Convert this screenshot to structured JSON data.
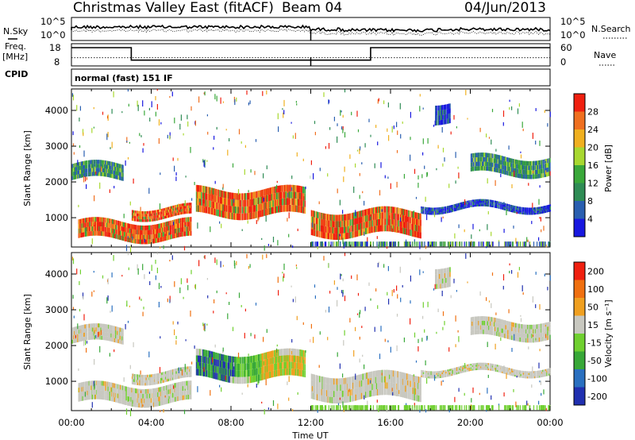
{
  "header": {
    "title": "Christmas Valley East (fitACF)",
    "beam": "Beam 04",
    "date": "04/Jun/2013"
  },
  "side_labels": {
    "nsky": "N.Sky",
    "nsearch": "N.Search",
    "freq_line1": "Freq.",
    "freq_line2": "[MHz]",
    "nave": "Nave",
    "cpid": "CPID",
    "cpid_value": "normal (fast) 151 IF"
  },
  "chart_data": [
    {
      "type": "line",
      "panel": "noise",
      "left_ticks": [
        "10^5",
        "10^0"
      ],
      "right_ticks": [
        "10^5",
        "10^0"
      ],
      "series": [
        {
          "name": "N.Sky",
          "style": "solid"
        },
        {
          "name": "N.Search",
          "style": "dotted"
        }
      ]
    },
    {
      "type": "line",
      "panel": "frequency",
      "left_ticks": [
        "18",
        "8"
      ],
      "right_ticks": [
        "60",
        "0"
      ],
      "ylim_left": [
        8,
        18
      ],
      "ylim_right": [
        0,
        60
      ],
      "freq_segments": [
        {
          "t0": 0,
          "t1": 3,
          "mhz": 16.2
        },
        {
          "t0": 3,
          "t1": 15,
          "mhz": 10.6
        },
        {
          "t0": 15,
          "t1": 24,
          "mhz": 16.2
        }
      ],
      "nave_level": 22
    },
    {
      "type": "heatmap",
      "panel": "power",
      "ylabel": "Slant Range [km]",
      "yticks": [
        "1000",
        "2000",
        "3000",
        "4000"
      ],
      "ylim": [
        180,
        4600
      ],
      "colorbar": {
        "label": "Power [dB]",
        "ticks": [
          "4",
          "8",
          "12",
          "16",
          "20",
          "24",
          "28"
        ],
        "colors": [
          "#1818e0",
          "#2a5fb0",
          "#2f8c55",
          "#3aa83a",
          "#a8d830",
          "#f0b020",
          "#f07020",
          "#f02010"
        ]
      },
      "features": [
        {
          "t0": 0,
          "t1": 2.6,
          "r0": 2050,
          "r1": 2500,
          "level": "mid"
        },
        {
          "t0": 0.3,
          "t1": 6.0,
          "r0": 380,
          "r1": 900,
          "level": "high"
        },
        {
          "t0": 3.0,
          "t1": 6.0,
          "r0": 1000,
          "r1": 1300,
          "level": "high"
        },
        {
          "t0": 6.2,
          "t1": 11.7,
          "r0": 1050,
          "r1": 1800,
          "level": "high"
        },
        {
          "t0": 12.0,
          "t1": 17.5,
          "r0": 500,
          "r1": 1200,
          "level": "high"
        },
        {
          "t0": 17.5,
          "t1": 24.0,
          "r0": 1200,
          "r1": 1400,
          "level": "low"
        },
        {
          "t0": 20.0,
          "t1": 24.0,
          "r0": 2200,
          "r1": 2700,
          "level": "mid"
        },
        {
          "t0": 18.2,
          "t1": 19.0,
          "r0": 3700,
          "r1": 4250,
          "level": "low"
        }
      ]
    },
    {
      "type": "heatmap",
      "panel": "velocity",
      "ylabel": "Slant Range [km]",
      "xlabel": "Time UT",
      "xticks": [
        "00:00",
        "04:00",
        "08:00",
        "12:00",
        "16:00",
        "20:00",
        "00:00"
      ],
      "xlim": [
        0,
        24
      ],
      "yticks": [
        "1000",
        "2000",
        "3000",
        "4000"
      ],
      "ylim": [
        180,
        4600
      ],
      "colorbar": {
        "label": "Velocity [m s⁻¹]",
        "ticks": [
          "200",
          "100",
          "50",
          "15",
          "-15",
          "-50",
          "-100",
          "-200"
        ],
        "colors": [
          "#2030b0",
          "#2a70c0",
          "#38a838",
          "#70d030",
          "#c8c8c0",
          "#f0a020",
          "#f07010",
          "#f02010"
        ]
      }
    }
  ]
}
